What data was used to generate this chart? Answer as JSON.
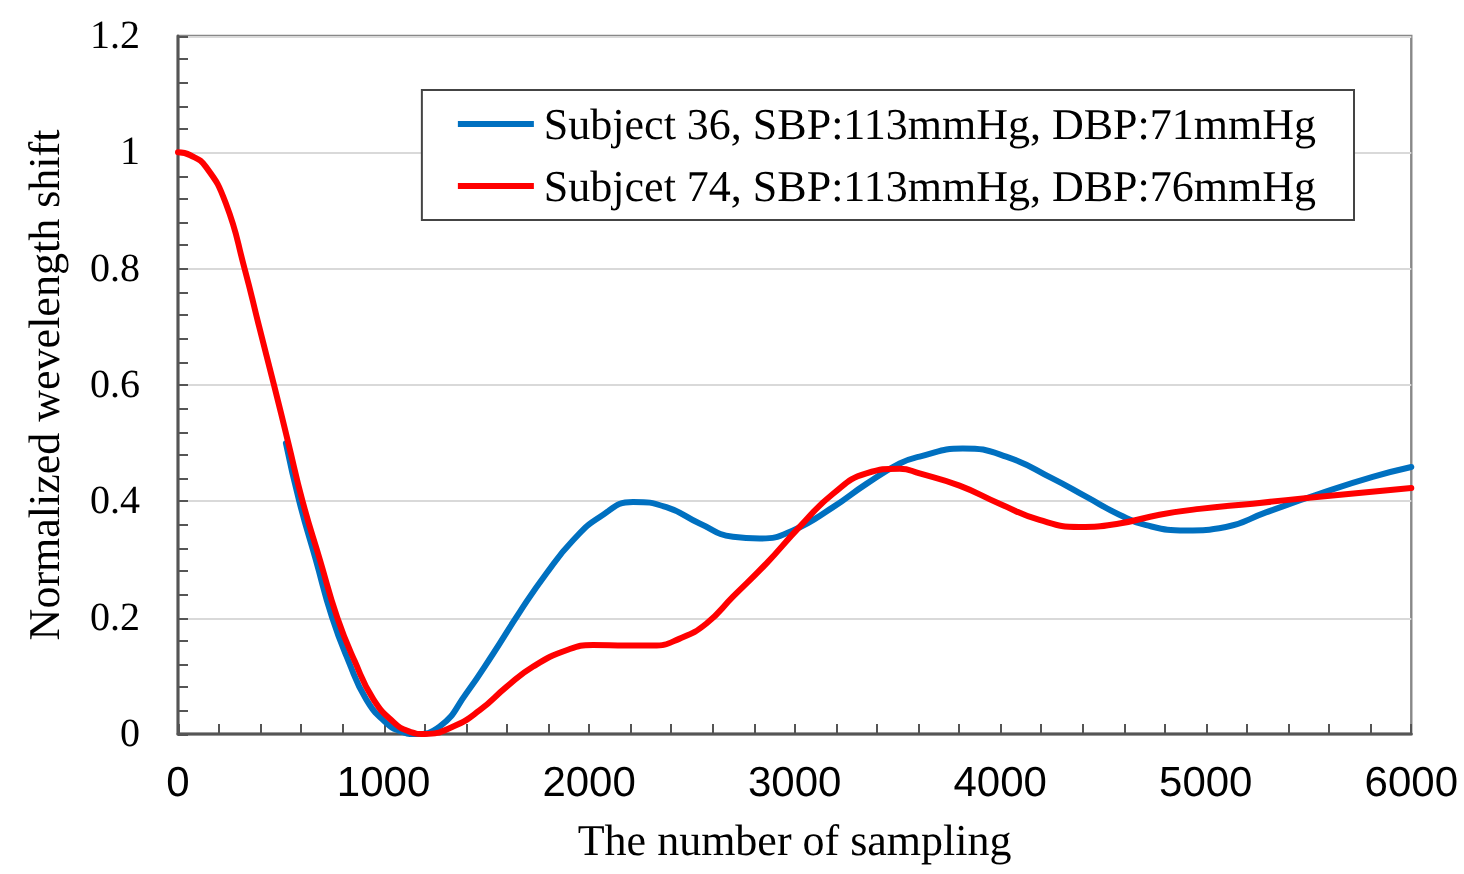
{
  "chart_data": {
    "type": "line",
    "xlabel": "The number of sampling",
    "ylabel": "Normalized wevelength shift",
    "xlim": [
      0,
      6000
    ],
    "xticks": [
      0,
      1000,
      2000,
      3000,
      4000,
      5000,
      6000
    ],
    "ylim": [
      0,
      1.2
    ],
    "yticks": [
      0,
      0.2,
      0.4,
      0.6,
      0.8,
      1,
      1.2
    ],
    "grid": "y",
    "legend": "top right",
    "marker": "none",
    "line_style": "solid",
    "series": [
      {
        "name": "Subject 36, SBP:113mmHg, DBP:71mmHg",
        "color": "#0070c0",
        "x": [
          525,
          590,
          670,
          750,
          830,
          915,
          1010,
          1080,
          1150,
          1274,
          1403,
          1533,
          1663,
          1792,
          1922,
          2052,
          2214,
          2376,
          2538,
          2700,
          2830,
          2992,
          3187,
          3349,
          3511,
          3608,
          3818,
          4029,
          4256,
          4418,
          4580,
          4710,
          4904,
          5098,
          5293,
          5553,
          5812,
          6000
        ],
        "values": [
          0.5,
          0.4,
          0.3,
          0.2,
          0.125,
          0.06,
          0.02,
          0.005,
          0,
          0.013,
          0.07,
          0.138,
          0.21,
          0.276,
          0.333,
          0.373,
          0.399,
          0.39,
          0.362,
          0.339,
          0.336,
          0.35,
          0.39,
          0.43,
          0.465,
          0.477,
          0.491,
          0.477,
          0.439,
          0.408,
          0.377,
          0.359,
          0.35,
          0.356,
          0.381,
          0.413,
          0.442,
          0.459
        ]
      },
      {
        "name": "Subjcet 74, SBP:113mmHg, DBP:76mmHg",
        "color": "#ff0000",
        "x": [
          0,
          60,
          136,
          233,
          324,
          395,
          467,
          537,
          606,
          690,
          775,
          860,
          950,
          1050,
          1120,
          1200,
          1339,
          1468,
          1598,
          1728,
          1890,
          2019,
          2181,
          2311,
          2441,
          2571,
          2700,
          2862,
          3024,
          3187,
          3349,
          3511,
          3608,
          3802,
          3997,
          4191,
          4385,
          4580,
          4775,
          4969,
          5229,
          5553,
          6000
        ],
        "values": [
          1,
          0.995,
          0.975,
          0.912,
          0.8,
          0.7,
          0.6,
          0.5,
          0.4,
          0.3,
          0.2,
          0.125,
          0.06,
          0.02,
          0.005,
          0,
          0.013,
          0.041,
          0.081,
          0.116,
          0.144,
          0.153,
          0.152,
          0.152,
          0.164,
          0.19,
          0.236,
          0.293,
          0.356,
          0.413,
          0.448,
          0.456,
          0.448,
          0.427,
          0.396,
          0.368,
          0.356,
          0.362,
          0.377,
          0.387,
          0.396,
          0.408,
          0.423
        ]
      }
    ]
  }
}
